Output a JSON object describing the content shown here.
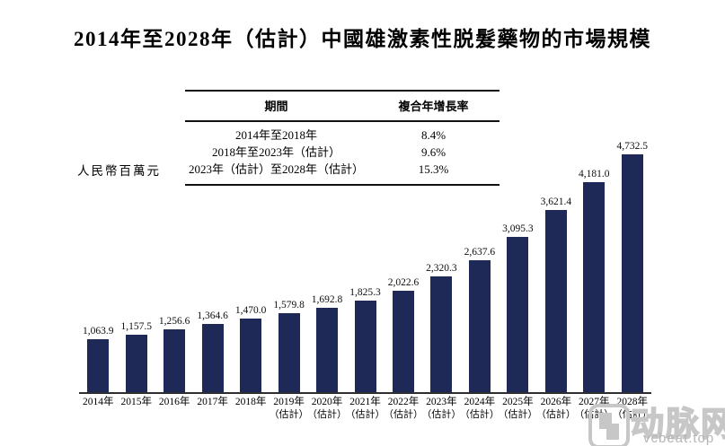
{
  "title": "2014年至2028年（估計）中國雄激素性脱髮藥物的市場規模",
  "table": {
    "headers": [
      "期間",
      "複合年增長率"
    ],
    "rows": [
      {
        "period": "2014年至2018年",
        "cagr": "8.4%"
      },
      {
        "period": "2018年至2023年（估計）",
        "cagr": "9.6%"
      },
      {
        "period": "2023年（估計）至2028年（估計）",
        "cagr": "15.3%"
      }
    ]
  },
  "chart_data": {
    "type": "bar",
    "title": "2014年至2028年（估計）中國雄激素性脱髮藥物的市場規模",
    "ylabel": "人民幣百萬元",
    "xlabel": "",
    "ylim": [
      0,
      4800
    ],
    "grid": false,
    "bar_color": "#1e2957",
    "categories": [
      {
        "year": "2014年",
        "note": ""
      },
      {
        "year": "2015年",
        "note": ""
      },
      {
        "year": "2016年",
        "note": ""
      },
      {
        "year": "2017年",
        "note": ""
      },
      {
        "year": "2018年",
        "note": ""
      },
      {
        "year": "2019年",
        "note": "（估計）"
      },
      {
        "year": "2020年",
        "note": "（估計）"
      },
      {
        "year": "2021年",
        "note": "（估計）"
      },
      {
        "year": "2022年",
        "note": "（估計）"
      },
      {
        "year": "2023年",
        "note": "（估計）"
      },
      {
        "year": "2024年",
        "note": "（估計）"
      },
      {
        "year": "2025年",
        "note": "（估計）"
      },
      {
        "year": "2026年",
        "note": "（估計）"
      },
      {
        "year": "2027年",
        "note": "（估計）"
      },
      {
        "year": "2028年",
        "note": "（估計）"
      }
    ],
    "values": [
      1063.9,
      1157.5,
      1256.6,
      1364.6,
      1470.0,
      1579.8,
      1692.8,
      1825.3,
      2022.6,
      2320.3,
      2637.6,
      3095.3,
      3621.4,
      4181.0,
      4732.5
    ],
    "value_labels": [
      "1,063.9",
      "1,157.5",
      "1,256.6",
      "1,364.6",
      "1,470.0",
      "1,579.8",
      "1,692.8",
      "1,825.3",
      "2,022.6",
      "2,320.3",
      "2,637.6",
      "3,095.3",
      "3,621.4",
      "4,181.0",
      "4,732.5"
    ]
  },
  "watermark": {
    "brand": "动脉网",
    "domain": "vcbeat.top"
  }
}
